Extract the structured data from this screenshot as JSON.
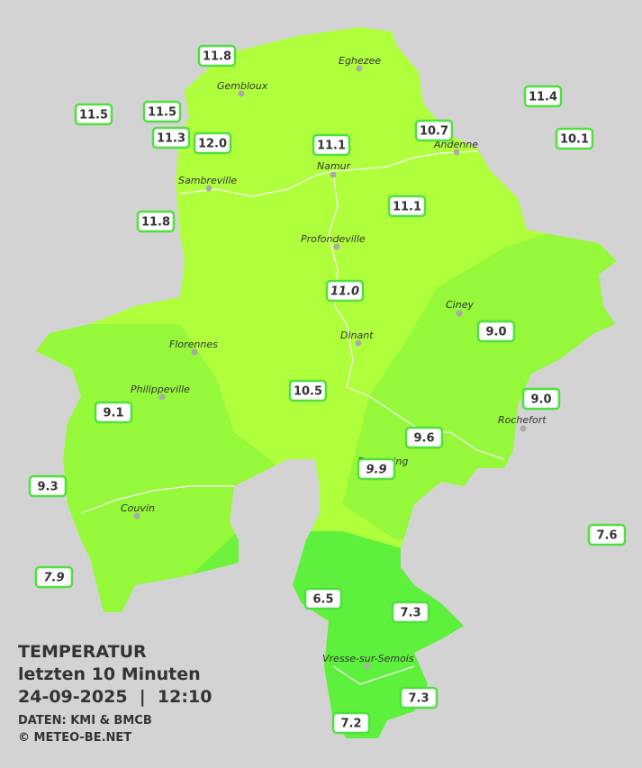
{
  "map": {
    "stations": [
      "11.8",
      "11.5",
      "11.5",
      "11.3",
      "12.0",
      "11.1",
      "10.7",
      "11.4",
      "10.1",
      "11.8",
      "11.1",
      "11.0",
      "9.0",
      "10.5",
      "9.1",
      "9.0",
      "9.6",
      "9.9",
      "9.3",
      "7.6",
      "7.9",
      "6.5",
      "7.3",
      "7.3",
      "7.2"
    ],
    "cities": [
      "Eghezee",
      "Gembloux",
      "Andenne",
      "Namur",
      "Sambreville",
      "Profondeville",
      "Ciney",
      "Florennes",
      "Dinant",
      "Philippeville",
      "Rochefort",
      "Beauraing",
      "Couvin",
      "Vresse-sur-Semois"
    ],
    "caption": {
      "title": "TEMPERATUR",
      "subtitle": "letzten 10 Minuten",
      "datetime": "24-09-2025  |  12:10",
      "source": "DATEN: KMI & BMCB",
      "copyright": "© METEO-BE.NET"
    }
  }
}
